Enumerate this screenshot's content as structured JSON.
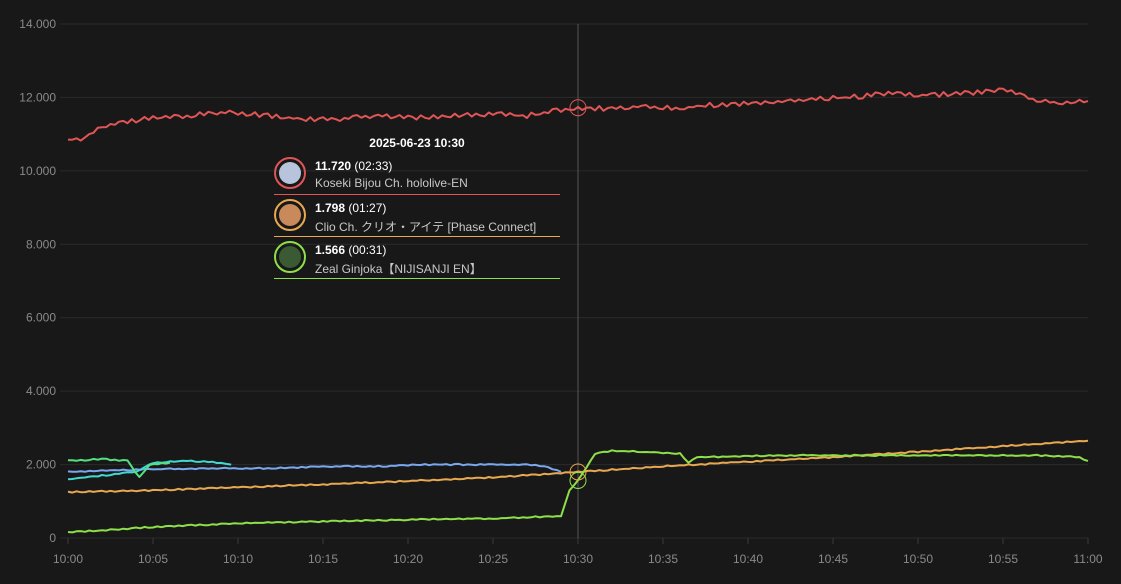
{
  "chart_data": {
    "type": "line",
    "x_labels": [
      "10:00",
      "10:05",
      "10:10",
      "10:15",
      "10:20",
      "10:25",
      "10:30",
      "10:35",
      "10:40",
      "10:45",
      "10:50",
      "10:55",
      "11:00"
    ],
    "x_range_minutes": [
      0,
      60
    ],
    "ylim": [
      0,
      14000
    ],
    "y_tick_values": [
      0,
      2000,
      4000,
      6000,
      8000,
      10000,
      12000,
      14000
    ],
    "y_tick_labels": [
      "0",
      "2.000",
      "4.000",
      "6.000",
      "8.000",
      "10.000",
      "12.000",
      "14.000"
    ],
    "grid": true,
    "cursor_minute": 30,
    "series": [
      {
        "name": "Koseki Bijou Ch. hololive-EN",
        "color": "#e05555",
        "points": [
          [
            0,
            10850
          ],
          [
            1,
            10900
          ],
          [
            2,
            11200
          ],
          [
            3,
            11300
          ],
          [
            5,
            11450
          ],
          [
            7,
            11500
          ],
          [
            9,
            11600
          ],
          [
            11,
            11550
          ],
          [
            13,
            11450
          ],
          [
            15,
            11400
          ],
          [
            17,
            11450
          ],
          [
            19,
            11500
          ],
          [
            21,
            11450
          ],
          [
            23,
            11500
          ],
          [
            25,
            11550
          ],
          [
            27,
            11500
          ],
          [
            29,
            11650
          ],
          [
            30,
            11720
          ],
          [
            32,
            11700
          ],
          [
            34,
            11750
          ],
          [
            36,
            11700
          ],
          [
            38,
            11800
          ],
          [
            40,
            11850
          ],
          [
            42,
            11900
          ],
          [
            44,
            11950
          ],
          [
            46,
            12000
          ],
          [
            48,
            12100
          ],
          [
            50,
            12050
          ],
          [
            52,
            12100
          ],
          [
            54,
            12150
          ],
          [
            55,
            12250
          ],
          [
            56,
            12100
          ],
          [
            57,
            11900
          ],
          [
            59,
            11850
          ],
          [
            60,
            11900
          ]
        ]
      },
      {
        "name": "Clio Ch. クリオ・アイテ [Phase Connect]",
        "color": "#e8a850",
        "points": [
          [
            0,
            1250
          ],
          [
            5,
            1300
          ],
          [
            10,
            1380
          ],
          [
            15,
            1460
          ],
          [
            20,
            1550
          ],
          [
            25,
            1650
          ],
          [
            30,
            1798
          ],
          [
            35,
            1950
          ],
          [
            40,
            2080
          ],
          [
            45,
            2200
          ],
          [
            50,
            2350
          ],
          [
            55,
            2500
          ],
          [
            60,
            2650
          ]
        ]
      },
      {
        "name": "Zeal Ginjoka【NIJISANJI EN】",
        "color": "#8ee04a",
        "points": [
          [
            0,
            150
          ],
          [
            5,
            300
          ],
          [
            10,
            400
          ],
          [
            15,
            450
          ],
          [
            20,
            500
          ],
          [
            25,
            530
          ],
          [
            29,
            600
          ],
          [
            29.5,
            1300
          ],
          [
            30,
            1566
          ],
          [
            31,
            2300
          ],
          [
            32,
            2380
          ],
          [
            36,
            2300
          ],
          [
            36.5,
            2050
          ],
          [
            37,
            2200
          ],
          [
            42,
            2250
          ],
          [
            47,
            2250
          ],
          [
            52,
            2250
          ],
          [
            57,
            2250
          ],
          [
            59.5,
            2200
          ],
          [
            60,
            2100
          ]
        ]
      },
      {
        "name": "",
        "color": "#7aa8f0",
        "points": [
          [
            0,
            1800
          ],
          [
            3,
            1850
          ],
          [
            6,
            1880
          ],
          [
            9,
            1900
          ],
          [
            12,
            1900
          ],
          [
            15,
            1950
          ],
          [
            18,
            1950
          ],
          [
            21,
            2000
          ],
          [
            24,
            2000
          ],
          [
            27,
            2000
          ],
          [
            28,
            1950
          ],
          [
            29,
            1800
          ]
        ]
      },
      {
        "name": "",
        "color": "#40d8d0",
        "points": [
          [
            0,
            1600
          ],
          [
            2,
            1700
          ],
          [
            4,
            1800
          ],
          [
            5,
            2050
          ],
          [
            7,
            2100
          ],
          [
            9,
            2050
          ],
          [
            9.6,
            2000
          ]
        ]
      },
      {
        "name": "",
        "color": "#55e080",
        "points": [
          [
            0,
            2100
          ],
          [
            2,
            2150
          ],
          [
            3.5,
            2100
          ],
          [
            4.2,
            1650
          ],
          [
            4.8,
            2000
          ],
          [
            6,
            2050
          ]
        ]
      }
    ]
  },
  "tooltip": {
    "title": "2025-06-23 10:30",
    "rows": [
      {
        "value": "11.720",
        "time": "(02:33)",
        "name": "Koseki Bijou Ch. hololive-EN",
        "color": "#e05555",
        "avatar": "#b8c4dc"
      },
      {
        "value": "1.798",
        "time": "(01:27)",
        "name": "Clio Ch. クリオ・アイテ [Phase Connect]",
        "color": "#e8a850",
        "avatar": "#c88a5a"
      },
      {
        "value": "1.566",
        "time": "(00:31)",
        "name": "Zeal Ginjoka【NIJISANJI EN】",
        "color": "#8ee04a",
        "avatar": "#3a5a34"
      }
    ]
  }
}
